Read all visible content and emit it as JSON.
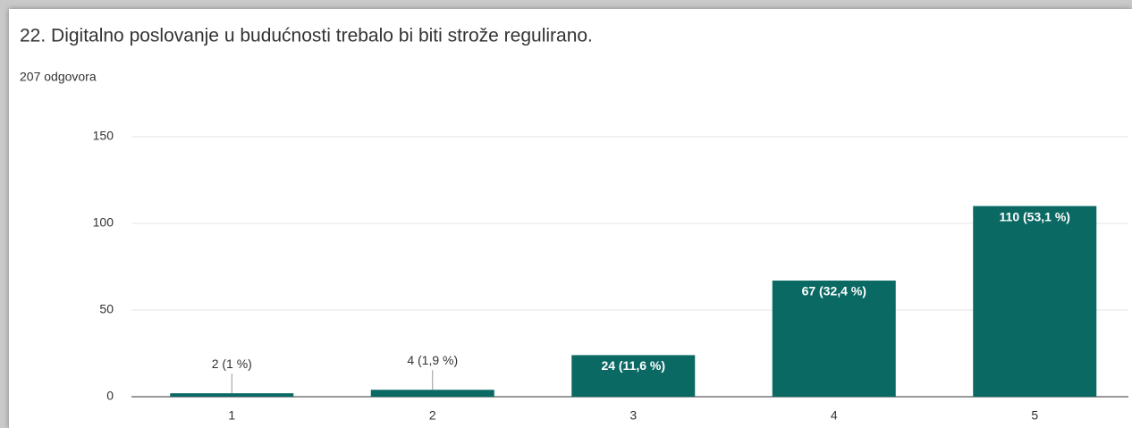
{
  "chart_data": {
    "type": "bar",
    "title": "22. Digitalno poslovanje u budućnosti trebalo bi biti strože regulirano.",
    "subtitle": "207 odgovora",
    "categories": [
      "1",
      "2",
      "3",
      "4",
      "5"
    ],
    "values": [
      2,
      4,
      24,
      67,
      110
    ],
    "value_labels": [
      "2 (1 %)",
      "4 (1,9 %)",
      "24 (11,6 %)",
      "67 (32,4 %)",
      "110 (53,1 %)"
    ],
    "color": "#0b6964",
    "ylim": [
      0,
      150
    ],
    "yticks": [
      0,
      50,
      100,
      150
    ],
    "grid": true
  }
}
